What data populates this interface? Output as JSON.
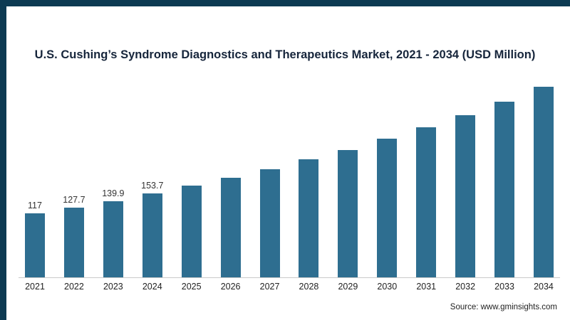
{
  "accent_color": "#0d3a52",
  "bar_color": "#2e6e90",
  "chart_data": {
    "type": "bar",
    "title": "U.S. Cushing’s Syndrome Diagnostics and Therapeutics Market, 2021 - 2034 (USD Million)",
    "xlabel": "",
    "ylabel": "",
    "categories": [
      "2021",
      "2022",
      "2023",
      "2024",
      "2025",
      "2026",
      "2027",
      "2028",
      "2029",
      "2030",
      "2031",
      "2032",
      "2033",
      "2034"
    ],
    "values": [
      117,
      127.7,
      139.9,
      153.7,
      168,
      183,
      199,
      216,
      234,
      254,
      275,
      298,
      322,
      350
    ],
    "data_labels": [
      "117",
      "127.7",
      "139.9",
      "153.7",
      "",
      "",
      "",
      "",
      "",
      "",
      "",
      "",
      "",
      ""
    ],
    "ylim": [
      0,
      368
    ],
    "grid": false,
    "legend": "none"
  },
  "source": {
    "text": "Source: www.gminsights.com"
  }
}
